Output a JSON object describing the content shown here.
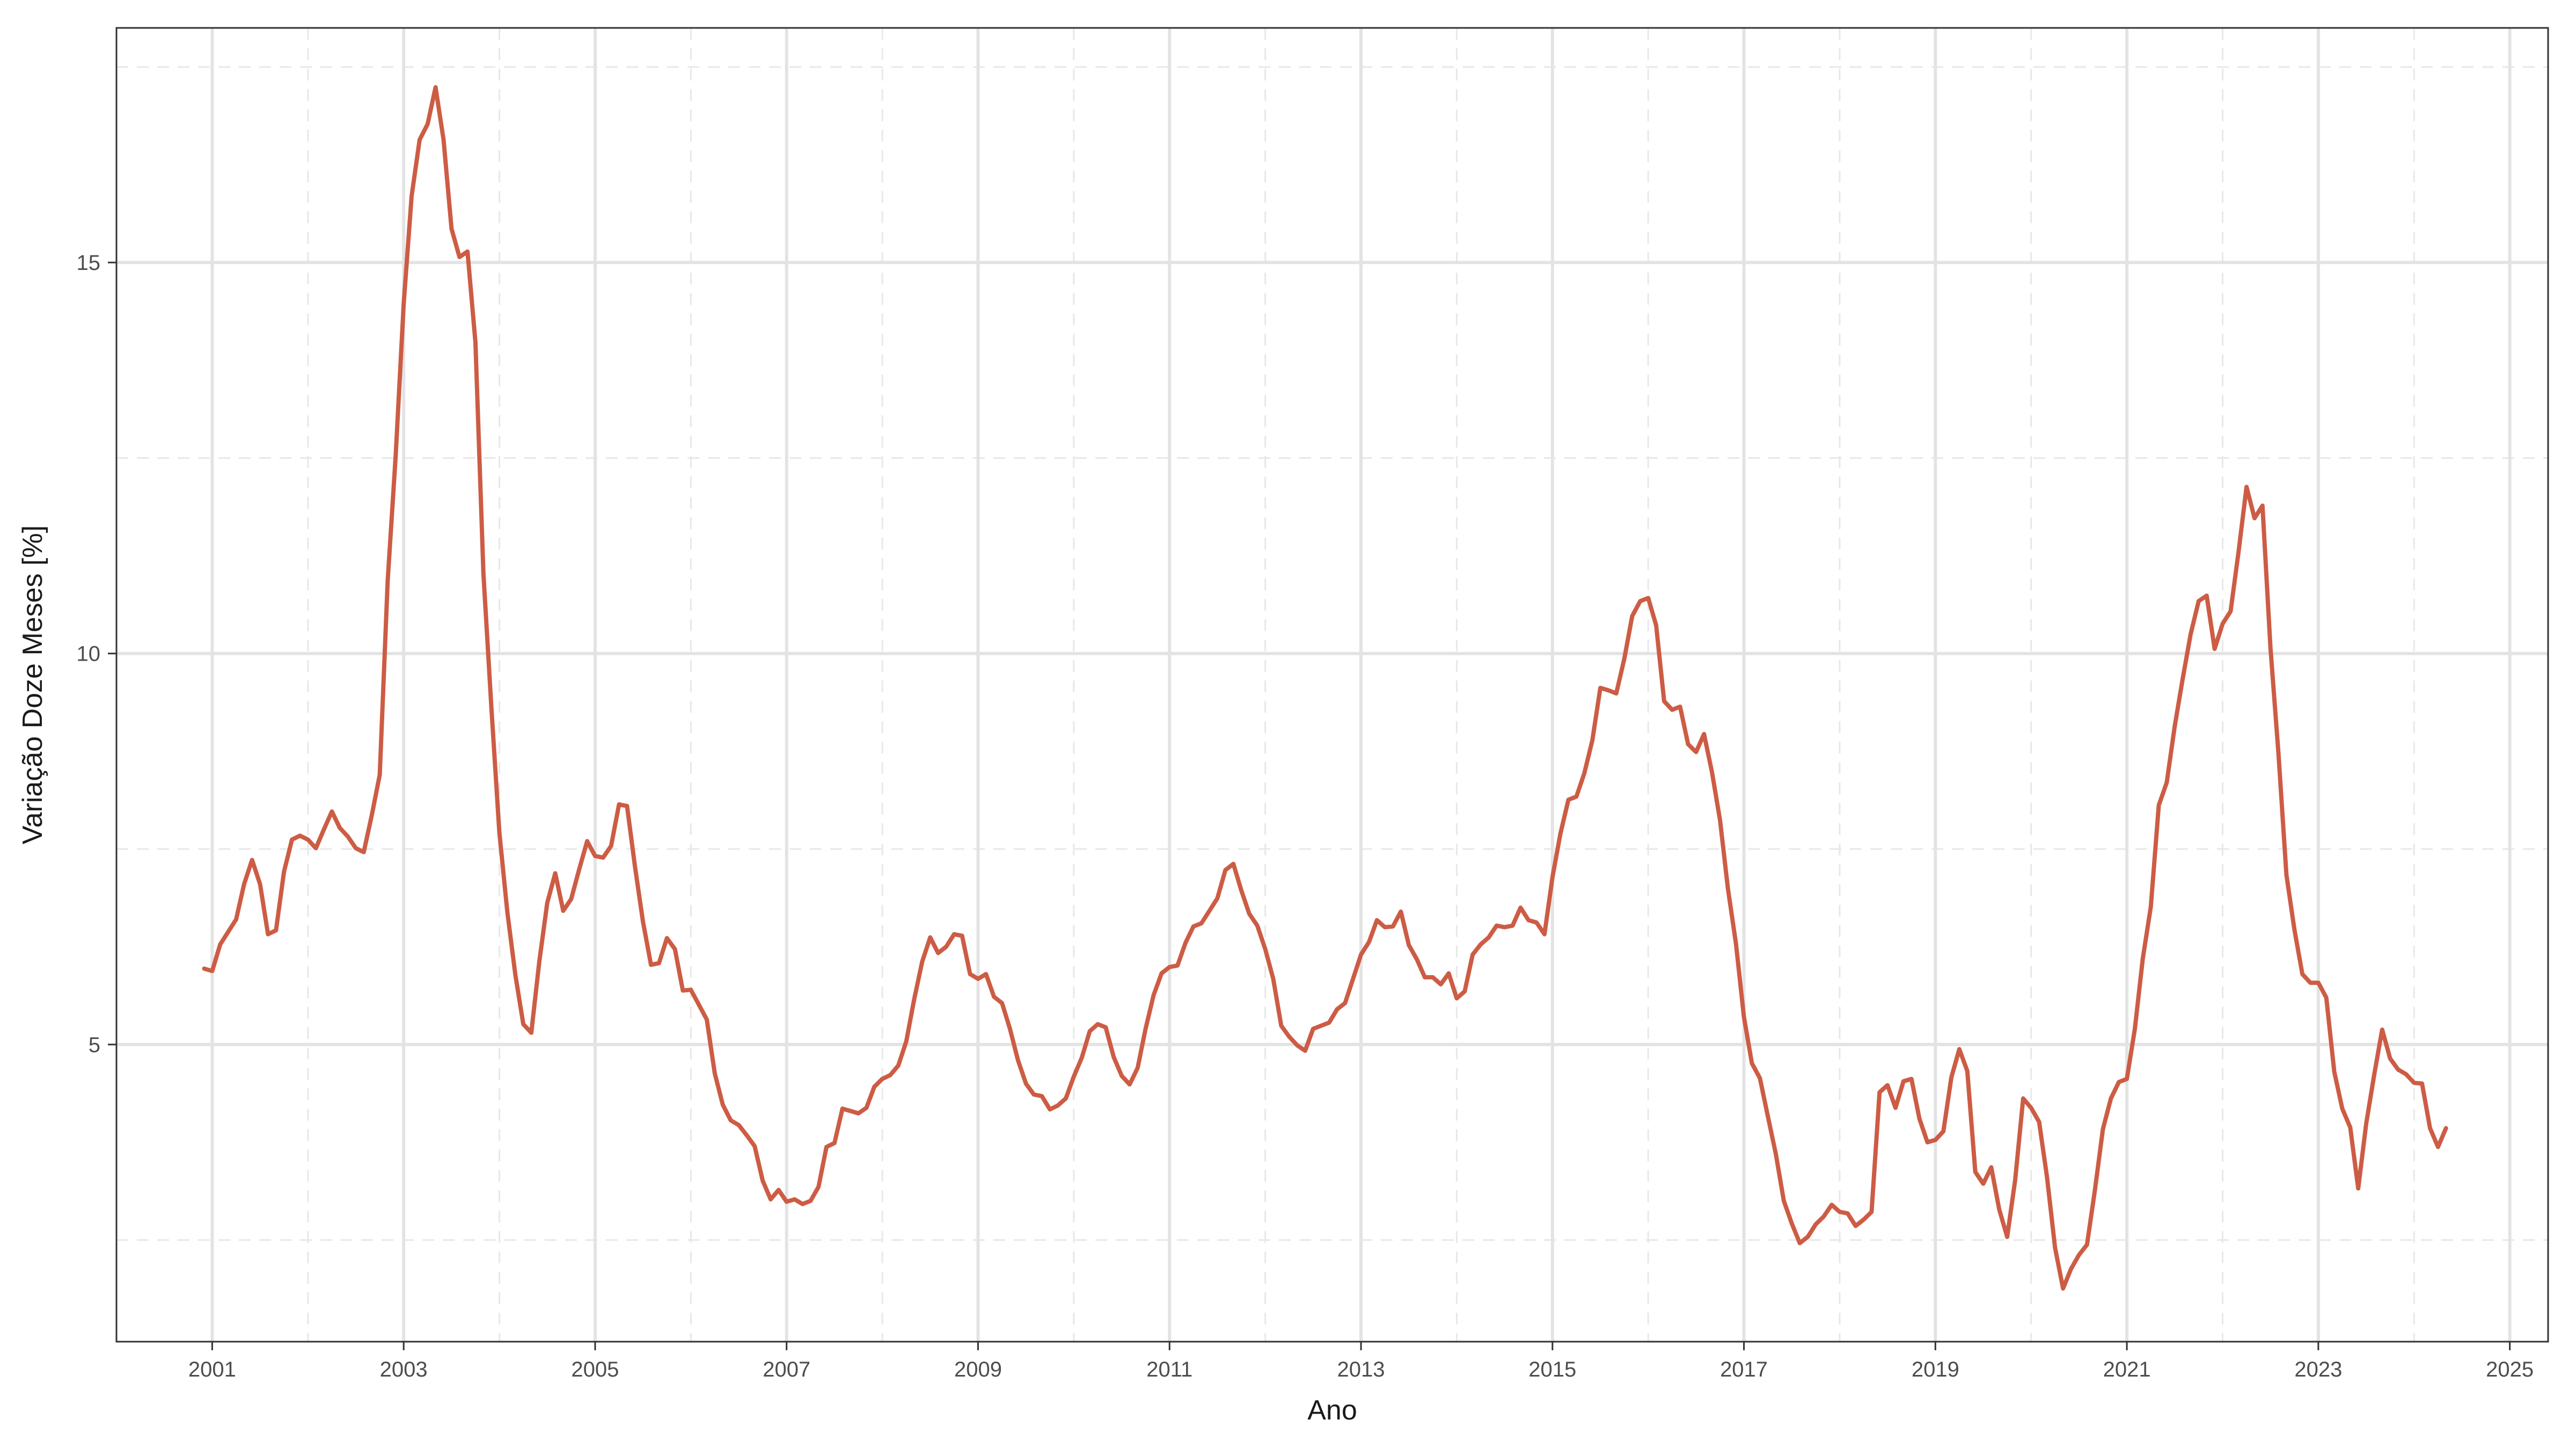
{
  "chart_data": {
    "type": "line",
    "title": "",
    "xlabel": "Ano",
    "ylabel": "Variação Doze Meses [%]",
    "xlim": [
      2000.0,
      2025.4
    ],
    "ylim": [
      1.2,
      18.0
    ],
    "x_ticks": [
      2001,
      2003,
      2005,
      2007,
      2009,
      2011,
      2013,
      2015,
      2017,
      2019,
      2021,
      2023,
      2025
    ],
    "x_tick_labels": [
      "2001",
      "2003",
      "2005",
      "2007",
      "2009",
      "2011",
      "2013",
      "2015",
      "2017",
      "2019",
      "2021",
      "2023",
      "2025"
    ],
    "y_ticks": [
      5,
      10,
      15
    ],
    "y_tick_labels": [
      "5",
      "10",
      "15"
    ],
    "grid": true,
    "legend": "none",
    "colors": {
      "line": "#cd5c45",
      "grid_major": "#e3e3e3",
      "grid_minor": "#e8e8e8",
      "panel_border": "#333333"
    },
    "series": [
      {
        "x": [
          "2000-12",
          "2001-01",
          "2001-02",
          "2001-03",
          "2001-04",
          "2001-05",
          "2001-06",
          "2001-07",
          "2001-08",
          "2001-09",
          "2001-10",
          "2001-11",
          "2001-12",
          "2002-01",
          "2002-02",
          "2002-03",
          "2002-04",
          "2002-05",
          "2002-06",
          "2002-07",
          "2002-08",
          "2002-09",
          "2002-10",
          "2002-11",
          "2002-12",
          "2003-01",
          "2003-02",
          "2003-03",
          "2003-04",
          "2003-05",
          "2003-06",
          "2003-07",
          "2003-08",
          "2003-09",
          "2003-10",
          "2003-11",
          "2003-12",
          "2004-01",
          "2004-02",
          "2004-03",
          "2004-04",
          "2004-05",
          "2004-06",
          "2004-07",
          "2004-08",
          "2004-09",
          "2004-10",
          "2004-11",
          "2004-12",
          "2005-01",
          "2005-02",
          "2005-03",
          "2005-04",
          "2005-05",
          "2005-06",
          "2005-07",
          "2005-08",
          "2005-09",
          "2005-10",
          "2005-11",
          "2005-12",
          "2006-01",
          "2006-02",
          "2006-03",
          "2006-04",
          "2006-05",
          "2006-06",
          "2006-07",
          "2006-08",
          "2006-09",
          "2006-10",
          "2006-11",
          "2006-12",
          "2007-01",
          "2007-02",
          "2007-03",
          "2007-04",
          "2007-05",
          "2007-06",
          "2007-07",
          "2007-08",
          "2007-09",
          "2007-10",
          "2007-11",
          "2007-12",
          "2008-01",
          "2008-02",
          "2008-03",
          "2008-04",
          "2008-05",
          "2008-06",
          "2008-07",
          "2008-08",
          "2008-09",
          "2008-10",
          "2008-11",
          "2008-12",
          "2009-01",
          "2009-02",
          "2009-03",
          "2009-04",
          "2009-05",
          "2009-06",
          "2009-07",
          "2009-08",
          "2009-09",
          "2009-10",
          "2009-11",
          "2009-12",
          "2010-01",
          "2010-02",
          "2010-03",
          "2010-04",
          "2010-05",
          "2010-06",
          "2010-07",
          "2010-08",
          "2010-09",
          "2010-10",
          "2010-11",
          "2010-12",
          "2011-01",
          "2011-02",
          "2011-03",
          "2011-04",
          "2011-05",
          "2011-06",
          "2011-07",
          "2011-08",
          "2011-09",
          "2011-10",
          "2011-11",
          "2011-12",
          "2012-01",
          "2012-02",
          "2012-03",
          "2012-04",
          "2012-05",
          "2012-06",
          "2012-07",
          "2012-08",
          "2012-09",
          "2012-10",
          "2012-11",
          "2012-12",
          "2013-01",
          "2013-02",
          "2013-03",
          "2013-04",
          "2013-05",
          "2013-06",
          "2013-07",
          "2013-08",
          "2013-09",
          "2013-10",
          "2013-11",
          "2013-12",
          "2014-01",
          "2014-02",
          "2014-03",
          "2014-04",
          "2014-05",
          "2014-06",
          "2014-07",
          "2014-08",
          "2014-09",
          "2014-10",
          "2014-11",
          "2014-12",
          "2015-01",
          "2015-02",
          "2015-03",
          "2015-04",
          "2015-05",
          "2015-06",
          "2015-07",
          "2015-08",
          "2015-09",
          "2015-10",
          "2015-11",
          "2015-12",
          "2016-01",
          "2016-02",
          "2016-03",
          "2016-04",
          "2016-05",
          "2016-06",
          "2016-07",
          "2016-08",
          "2016-09",
          "2016-10",
          "2016-11",
          "2016-12",
          "2017-01",
          "2017-02",
          "2017-03",
          "2017-04",
          "2017-05",
          "2017-06",
          "2017-07",
          "2017-08",
          "2017-09",
          "2017-10",
          "2017-11",
          "2017-12",
          "2018-01",
          "2018-02",
          "2018-03",
          "2018-04",
          "2018-05",
          "2018-06",
          "2018-07",
          "2018-08",
          "2018-09",
          "2018-10",
          "2018-11",
          "2018-12",
          "2019-01",
          "2019-02",
          "2019-03",
          "2019-04",
          "2019-05",
          "2019-06",
          "2019-07",
          "2019-08",
          "2019-09",
          "2019-10",
          "2019-11",
          "2019-12",
          "2020-01",
          "2020-02",
          "2020-03",
          "2020-04",
          "2020-05",
          "2020-06",
          "2020-07",
          "2020-08",
          "2020-09",
          "2020-10",
          "2020-11",
          "2020-12",
          "2021-01",
          "2021-02",
          "2021-03",
          "2021-04",
          "2021-05",
          "2021-06",
          "2021-07",
          "2021-08",
          "2021-09",
          "2021-10",
          "2021-11",
          "2021-12",
          "2022-01",
          "2022-02",
          "2022-03",
          "2022-04",
          "2022-05",
          "2022-06",
          "2022-07",
          "2022-08",
          "2022-09",
          "2022-10",
          "2022-11",
          "2022-12",
          "2023-01",
          "2023-02",
          "2023-03",
          "2023-04",
          "2023-05",
          "2023-06",
          "2023-07",
          "2023-08",
          "2023-09",
          "2023-10",
          "2023-11",
          "2023-12",
          "2024-01",
          "2024-02",
          "2024-03",
          "2024-04",
          "2024-05"
        ],
        "y": [
          5.97,
          5.94,
          6.28,
          6.44,
          6.6,
          7.05,
          7.36,
          7.05,
          6.41,
          6.46,
          7.21,
          7.62,
          7.67,
          7.62,
          7.51,
          7.75,
          7.98,
          7.77,
          7.66,
          7.51,
          7.46,
          7.93,
          8.45,
          10.93,
          12.53,
          14.47,
          15.85,
          16.57,
          16.77,
          17.24,
          16.57,
          15.43,
          15.07,
          15.14,
          13.98,
          11.02,
          9.3,
          7.71,
          6.69,
          5.89,
          5.26,
          5.15,
          6.06,
          6.81,
          7.19,
          6.71,
          6.86,
          7.24,
          7.6,
          7.41,
          7.39,
          7.54,
          8.07,
          8.05,
          7.27,
          6.57,
          6.02,
          6.04,
          6.36,
          6.22,
          5.69,
          5.7,
          5.51,
          5.32,
          4.63,
          4.23,
          4.03,
          3.97,
          3.84,
          3.7,
          3.26,
          3.02,
          3.14,
          2.99,
          3.02,
          2.96,
          3.0,
          3.18,
          3.69,
          3.74,
          4.18,
          4.15,
          4.12,
          4.19,
          4.46,
          4.56,
          4.61,
          4.73,
          5.04,
          5.58,
          6.06,
          6.37,
          6.17,
          6.25,
          6.41,
          6.39,
          5.9,
          5.84,
          5.9,
          5.61,
          5.53,
          5.2,
          4.8,
          4.5,
          4.36,
          4.34,
          4.17,
          4.22,
          4.31,
          4.59,
          4.83,
          5.17,
          5.26,
          5.22,
          4.84,
          4.6,
          4.49,
          4.7,
          5.2,
          5.63,
          5.91,
          5.99,
          6.01,
          6.3,
          6.51,
          6.55,
          6.71,
          6.87,
          7.23,
          7.31,
          6.97,
          6.67,
          6.52,
          6.22,
          5.84,
          5.24,
          5.1,
          4.99,
          4.92,
          5.2,
          5.24,
          5.28,
          5.45,
          5.53,
          5.84,
          6.15,
          6.31,
          6.59,
          6.5,
          6.51,
          6.7,
          6.27,
          6.09,
          5.86,
          5.86,
          5.77,
          5.91,
          5.59,
          5.68,
          6.15,
          6.28,
          6.37,
          6.52,
          6.5,
          6.52,
          6.75,
          6.59,
          6.56,
          6.41,
          7.14,
          7.7,
          8.13,
          8.17,
          8.47,
          8.89,
          9.56,
          9.53,
          9.49,
          9.93,
          10.48,
          10.67,
          10.71,
          10.36,
          9.39,
          9.28,
          9.32,
          8.84,
          8.74,
          8.97,
          8.48,
          7.87,
          6.99,
          6.29,
          5.35,
          4.76,
          4.57,
          4.08,
          3.6,
          3.0,
          2.71,
          2.46,
          2.54,
          2.7,
          2.8,
          2.95,
          2.86,
          2.84,
          2.68,
          2.76,
          2.86,
          4.39,
          4.48,
          4.19,
          4.53,
          4.56,
          4.05,
          3.75,
          3.78,
          3.89,
          4.58,
          4.94,
          4.66,
          3.37,
          3.22,
          3.43,
          2.89,
          2.54,
          3.27,
          4.31,
          4.19,
          4.01,
          3.3,
          2.4,
          1.88,
          2.13,
          2.31,
          2.44,
          3.14,
          3.92,
          4.31,
          4.52,
          4.56,
          5.2,
          6.1,
          6.76,
          8.06,
          8.35,
          9.07,
          9.68,
          10.25,
          10.67,
          10.74,
          10.06,
          10.38,
          10.54,
          11.3,
          12.13,
          11.73,
          11.89,
          10.07,
          8.73,
          7.17,
          6.47,
          5.9,
          5.79,
          5.79,
          5.6,
          4.65,
          4.18,
          3.94,
          3.16,
          3.99,
          4.61,
          5.19,
          4.82,
          4.68,
          4.62,
          4.51,
          4.5,
          3.93,
          3.69,
          3.93
        ]
      }
    ]
  }
}
